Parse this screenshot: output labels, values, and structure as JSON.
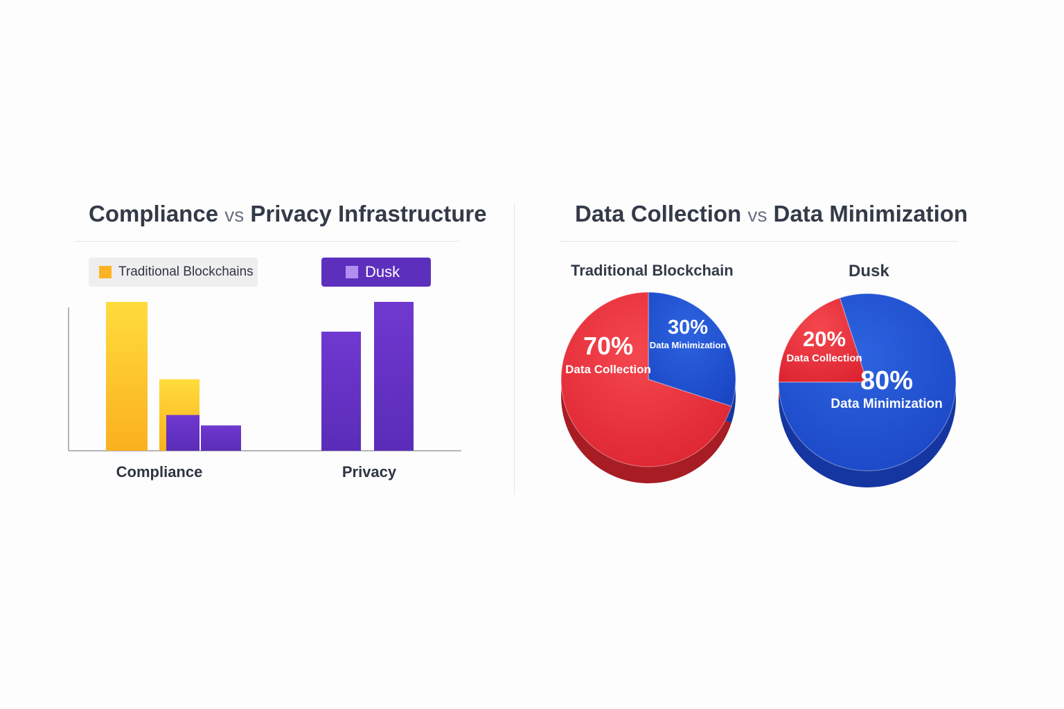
{
  "left_panel": {
    "title_a": "Compliance",
    "title_vs": "vs",
    "title_b": "Privacy Infrastructure",
    "legend": [
      {
        "label": "Traditional Blockchains",
        "color": "#fbb324"
      },
      {
        "label": "Dusk",
        "color": "#6634c9"
      }
    ]
  },
  "right_panel": {
    "title_a": "Data Collection",
    "title_vs": "vs",
    "title_b": "Data Minimization"
  },
  "colors": {
    "yellow": "#fbb324",
    "purple": "#6634c9",
    "red": "#e8303a",
    "blue": "#1f4fcf"
  },
  "chart_data": [
    {
      "type": "bar",
      "categories": [
        "Compliance",
        "Privacy"
      ],
      "series": [
        {
          "name": "Traditional Blockchains",
          "values": [
            100,
            null
          ]
        },
        {
          "name": "",
          "values": [
            48,
            null
          ]
        },
        {
          "name": "Dusk",
          "values": [
            24,
            80
          ]
        },
        {
          "name": "",
          "values": [
            17,
            100
          ]
        }
      ],
      "legend": "top",
      "ylim": [
        0,
        105
      ]
    },
    {
      "type": "pie",
      "title": "Traditional Blockchain",
      "slices": [
        {
          "label": "Data Collection",
          "value": 70,
          "display": "70%",
          "color": "#e8303a"
        },
        {
          "label": "Data Minimization",
          "value": 30,
          "display": "30%",
          "color": "#1f4fcf"
        }
      ]
    },
    {
      "type": "pie",
      "title": "Dusk",
      "slices": [
        {
          "label": "Data Collection",
          "value": 20,
          "display": "20%",
          "color": "#e8303a"
        },
        {
          "label": "Data Minimization",
          "value": 80,
          "display": "80%",
          "color": "#1f4fcf"
        }
      ]
    }
  ]
}
